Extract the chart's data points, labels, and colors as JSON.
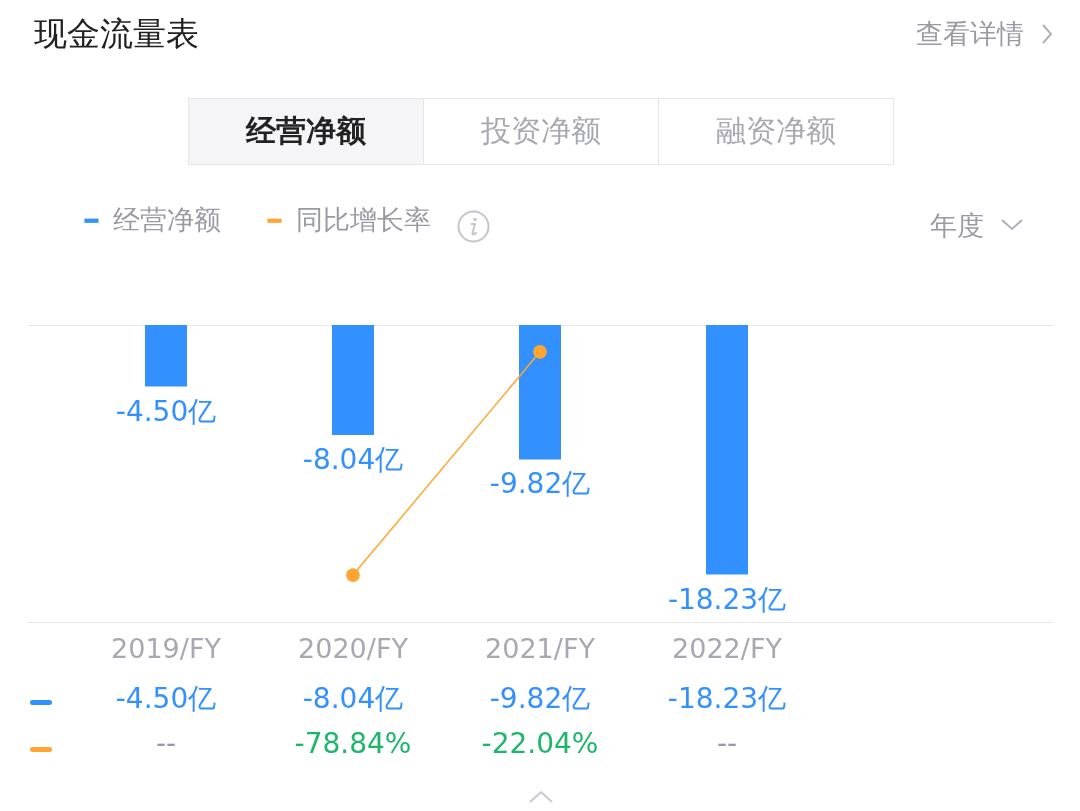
{
  "chart_data": {
    "type": "bar",
    "title": "现金流量表",
    "annotations": [
      "查看详情",
      "经营净额",
      "投资净额",
      "融资净额",
      "年度"
    ],
    "categories": [
      "2019/FY",
      "2020/FY",
      "2021/FY",
      "2022/FY"
    ],
    "series": [
      {
        "name": "经营净额",
        "color": "#3390ff",
        "values": [
          -4.5,
          -8.04,
          -9.82,
          -18.23
        ],
        "value_labels": [
          "-4.50亿",
          "-8.04亿",
          "-9.82亿",
          "-18.23亿"
        ]
      },
      {
        "name": "同比增长率",
        "type": "line",
        "axis": "y2",
        "color": "#ffa531",
        "values": [
          null,
          -78.84,
          -22.04,
          null
        ],
        "value_labels": [
          "--",
          "-78.84%",
          "-22.04%",
          "--"
        ]
      }
    ],
    "legend": "top left",
    "marker": "circle",
    "tick_labels": "x"
  }
}
